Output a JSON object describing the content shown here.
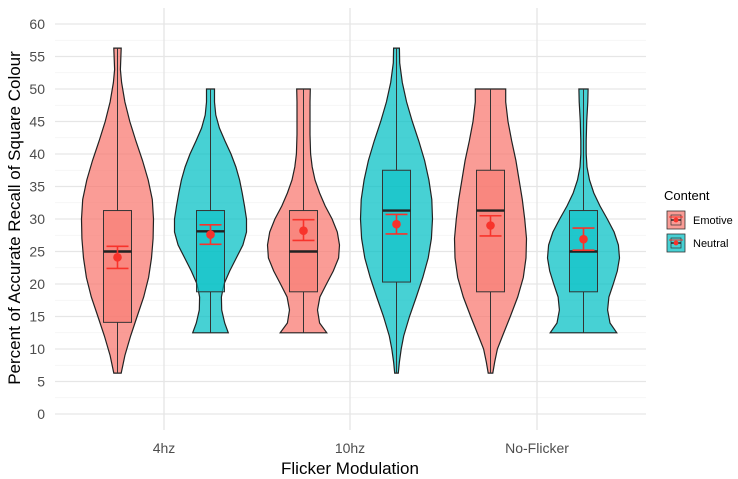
{
  "chart_data": {
    "type": "violin",
    "title": "",
    "xlabel": "Flicker Modulation",
    "ylabel": "Percent of Accurate Recall of Square Colour",
    "ylim": [
      0,
      62
    ],
    "yticks": [
      0,
      5,
      10,
      15,
      20,
      25,
      30,
      35,
      40,
      45,
      50,
      55,
      60
    ],
    "categories": [
      "4hz",
      "10hz",
      "No-Flicker"
    ],
    "grid": true,
    "legend": {
      "title": "Content",
      "position": "right"
    },
    "series": [
      {
        "name": "Emotive",
        "color": "#F8766D",
        "groups": [
          {
            "category": "4hz",
            "box": {
              "q1": 14.1,
              "median": 25.0,
              "q3": 31.3,
              "whisker_low": 6.3,
              "whisker_high": 56.3
            },
            "mean": 24.1,
            "se_low": 22.4,
            "se_high": 25.8,
            "violin": [
              [
                6.3,
                0.9
              ],
              [
                9,
                1.8
              ],
              [
                12,
                3.2
              ],
              [
                15,
                4.8
              ],
              [
                18,
                6.4
              ],
              [
                21,
                7.6
              ],
              [
                24,
                8.3
              ],
              [
                27,
                8.7
              ],
              [
                30,
                8.8
              ],
              [
                33,
                8.5
              ],
              [
                36,
                7.5
              ],
              [
                39,
                6.1
              ],
              [
                42,
                4.5
              ],
              [
                45,
                3.0
              ],
              [
                48,
                1.8
              ],
              [
                51,
                1.0
              ],
              [
                53,
                0.7
              ],
              [
                56.3,
                0.9
              ]
            ]
          },
          {
            "category": "10hz",
            "box": {
              "q1": 18.8,
              "median": 25.0,
              "q3": 31.3,
              "whisker_low": 12.5,
              "whisker_high": 50.0
            },
            "mean": 28.2,
            "se_low": 26.7,
            "se_high": 29.9,
            "violin": [
              [
                12.5,
                7.5
              ],
              [
                14,
                5.2
              ],
              [
                16,
                4.5
              ],
              [
                18,
                5.3
              ],
              [
                20,
                7.4
              ],
              [
                22,
                9.6
              ],
              [
                24,
                11.3
              ],
              [
                26,
                11.6
              ],
              [
                28,
                10.9
              ],
              [
                30,
                9.2
              ],
              [
                32,
                7.0
              ],
              [
                34,
                5.2
              ],
              [
                36,
                3.7
              ],
              [
                38,
                2.8
              ],
              [
                40,
                2.3
              ],
              [
                43,
                2.1
              ],
              [
                46,
                2.1
              ],
              [
                48,
                2.1
              ],
              [
                50,
                2.2
              ]
            ]
          },
          {
            "category": "No-Flicker",
            "box": {
              "q1": 18.8,
              "median": 31.3,
              "q3": 37.5,
              "whisker_low": 6.3,
              "whisker_high": 50.0
            },
            "mean": 29.0,
            "se_low": 27.4,
            "se_high": 30.5,
            "violin": [
              [
                6.3,
                0.5
              ],
              [
                8,
                0.9
              ],
              [
                10,
                1.5
              ],
              [
                12,
                2.6
              ],
              [
                15,
                4.3
              ],
              [
                18,
                5.9
              ],
              [
                21,
                7.1
              ],
              [
                24,
                7.7
              ],
              [
                27,
                7.8
              ],
              [
                30,
                7.4
              ],
              [
                33,
                6.9
              ],
              [
                36,
                6.2
              ],
              [
                39,
                5.5
              ],
              [
                42,
                4.6
              ],
              [
                45,
                3.8
              ],
              [
                48,
                3.3
              ],
              [
                50,
                3.3
              ]
            ]
          }
        ]
      },
      {
        "name": "Neutral",
        "color": "#00BFC4",
        "groups": [
          {
            "category": "4hz",
            "box": {
              "q1": 18.8,
              "median": 28.1,
              "q3": 31.3,
              "whisker_low": 12.5,
              "whisker_high": 50.0
            },
            "mean": 27.6,
            "se_low": 26.1,
            "se_high": 29.1,
            "violin": [
              [
                12.5,
                5.4
              ],
              [
                14,
                4.3
              ],
              [
                16,
                3.4
              ],
              [
                18,
                3.3
              ],
              [
                20,
                4.1
              ],
              [
                22,
                5.8
              ],
              [
                24,
                7.8
              ],
              [
                26,
                9.8
              ],
              [
                28,
                10.9
              ],
              [
                30,
                10.9
              ],
              [
                32,
                10.3
              ],
              [
                34,
                9.6
              ],
              [
                36,
                8.8
              ],
              [
                38,
                7.7
              ],
              [
                40,
                6.2
              ],
              [
                42,
                4.4
              ],
              [
                44,
                2.7
              ],
              [
                46,
                1.6
              ],
              [
                48,
                1.2
              ],
              [
                50,
                1.2
              ]
            ]
          },
          {
            "category": "10hz",
            "box": {
              "q1": 20.3,
              "median": 31.3,
              "q3": 37.5,
              "whisker_low": 6.3,
              "whisker_high": 56.3
            },
            "mean": 29.2,
            "se_low": 27.7,
            "se_high": 30.7,
            "violin": [
              [
                6.3,
                0.5
              ],
              [
                8,
                0.8
              ],
              [
                10,
                1.3
              ],
              [
                12,
                2.0
              ],
              [
                15,
                3.6
              ],
              [
                18,
                5.5
              ],
              [
                21,
                7.3
              ],
              [
                24,
                8.8
              ],
              [
                27,
                9.7
              ],
              [
                30,
                10.0
              ],
              [
                33,
                9.8
              ],
              [
                36,
                9.0
              ],
              [
                39,
                7.8
              ],
              [
                42,
                6.2
              ],
              [
                45,
                4.4
              ],
              [
                48,
                2.8
              ],
              [
                51,
                1.6
              ],
              [
                54,
                0.9
              ],
              [
                56.3,
                0.8
              ]
            ]
          },
          {
            "category": "No-Flicker",
            "box": {
              "q1": 18.8,
              "median": 25.0,
              "q3": 31.3,
              "whisker_low": 12.5,
              "whisker_high": 50.0
            },
            "mean": 26.9,
            "se_low": 25.2,
            "se_high": 28.6,
            "violin": [
              [
                12.5,
                12.3
              ],
              [
                14,
                9.8
              ],
              [
                16,
                8.9
              ],
              [
                18,
                9.4
              ],
              [
                20,
                11.0
              ],
              [
                22,
                12.5
              ],
              [
                24,
                13.3
              ],
              [
                26,
                12.9
              ],
              [
                28,
                11.3
              ],
              [
                30,
                8.8
              ],
              [
                32,
                6.1
              ],
              [
                34,
                3.8
              ],
              [
                36,
                2.2
              ],
              [
                38,
                1.3
              ],
              [
                40,
                1.0
              ],
              [
                42,
                1.0
              ],
              [
                45,
                1.2
              ],
              [
                48,
                1.6
              ],
              [
                50,
                1.7
              ]
            ]
          }
        ]
      }
    ]
  }
}
